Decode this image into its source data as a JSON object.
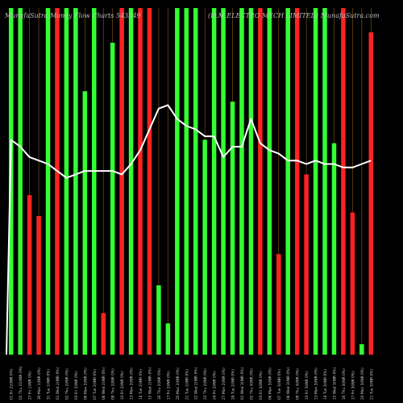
{
  "title": {
    "left": "MunafaSutra Money Flow Charts 543349",
    "right": "(H.M.ELECTRO MECH LIMITED) MunafaSutra.com"
  },
  "colors": {
    "background": "#000000",
    "up": "#33ff33",
    "down": "#ff2222",
    "line": "#ffffff",
    "grid": "#8a5a1e"
  },
  "chart_data": {
    "type": "bar",
    "title": "MunafaSutra Money Flow Charts 543349 (H.M.ELECTRO MECH LIMITED) MunafaSutra.com",
    "ylim": [
      0,
      100
    ],
    "x_ticks": [
      "01 Fri 22(INR 0%)",
      "02 Thu 22(INR 0%)",
      "27 Fri 1(INR 0%)",
      "30 Mon 1(INR 0%)",
      "31 Tue 1(INR 0%)",
      "01 Wed 2(INR 0%)",
      "02 Thu 2(INR 0%)",
      "03 Fri 2(INR 0%)",
      "06 Mon 2(INR 0%)",
      "07 Tue 2(INR 0%)",
      "08 Wed 2(INR 0%)",
      "09 Thu 2(INR 0%)",
      "10 Fri 2(INR 0%)",
      "13 Mon 2(INR 0%)",
      "14 Tue 2(INR 0%)",
      "15 Wed 2(INR 0%)",
      "16 Thu 2(INR 0%)",
      "17 Fri 2(INR 0%)",
      "20 Mon 2(INR 0%)",
      "21 Tue 2(INR 0%)",
      "22 Wed 2(INR 0%)",
      "23 Thu 2(INR 0%)",
      "24 Fri 2(INR 0%)",
      "27 Mon 2(INR 0%)",
      "28 Tue 2(INR 0%)",
      "01 Wed 3(INR 0%)",
      "02 Thu 3(INR 0%)",
      "03 Fri 3(INR 0%)",
      "06 Mon 3(INR 0%)",
      "07 Tue 3(INR 0%)",
      "08 Wed 3(INR 0%)",
      "09 Thu 3(INR 0%)",
      "10 Fri 3(INR 0%)",
      "13 Mon 3(INR 0%)",
      "14 Tue 3(INR 0%)",
      "15 Wed 3(INR 0%)",
      "16 Thu 3(INR 0%)",
      "17 Fri 3(INR 0%)",
      "20 Mon 3(INR 0%)",
      "21 Tue 3(INR 0%)"
    ],
    "bar_values": [
      100,
      100,
      46,
      40,
      100,
      100,
      100,
      100,
      76,
      100,
      12,
      90,
      100,
      100,
      100,
      100,
      20,
      9,
      100,
      100,
      100,
      62,
      100,
      100,
      73,
      100,
      100,
      100,
      100,
      29,
      100,
      100,
      52,
      100,
      100,
      61,
      100,
      41,
      3,
      93
    ],
    "bar_directions": [
      "up",
      "up",
      "down",
      "down",
      "up",
      "down",
      "up",
      "up",
      "up",
      "up",
      "down",
      "up",
      "down",
      "up",
      "down",
      "down",
      "up",
      "up",
      "up",
      "up",
      "up",
      "up",
      "up",
      "up",
      "up",
      "up",
      "up",
      "down",
      "up",
      "down",
      "up",
      "down",
      "down",
      "up",
      "up",
      "up",
      "down",
      "down",
      "up",
      "down"
    ],
    "line_values": [
      62,
      60,
      57,
      56,
      55,
      53,
      51,
      52,
      53,
      53,
      53,
      53,
      52,
      55,
      59,
      65,
      71,
      72,
      68,
      66,
      65,
      63,
      63,
      57,
      60,
      60,
      68,
      61,
      59,
      58,
      56,
      56,
      55,
      56,
      55,
      55,
      54,
      54,
      55,
      56
    ]
  }
}
